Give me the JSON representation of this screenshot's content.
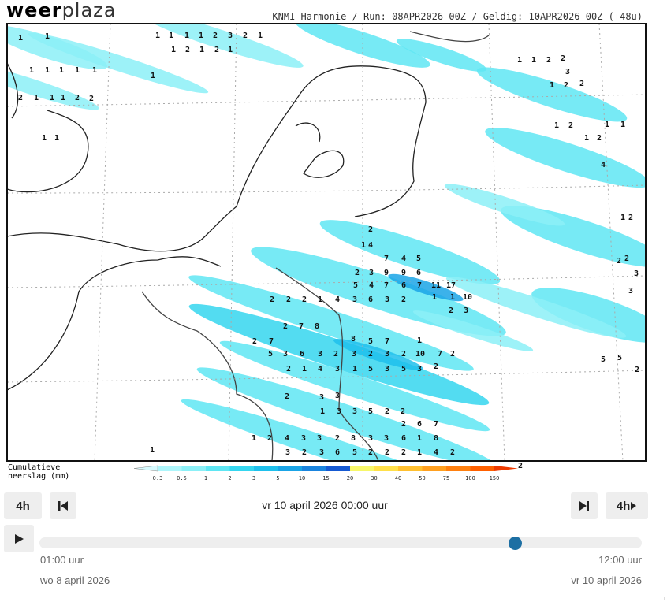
{
  "header": {
    "logo_bold": "weer",
    "logo_light": "plaza",
    "model_info": "KNMI Harmonie / Run: 08APR2026 00Z / Geldig: 10APR2026 00Z (+48u)"
  },
  "legend": {
    "title_lines": [
      "Cumulatieve",
      "neerslag (mm)"
    ],
    "ticks": [
      0.3,
      0.5,
      1,
      2,
      3,
      5,
      10,
      15,
      20,
      30,
      40,
      50,
      75,
      100,
      150
    ],
    "colors": [
      "#d8fbff",
      "#aef6fb",
      "#8cf0f7",
      "#5fe6f3",
      "#35d6ef",
      "#1fc0ec",
      "#1aa4e6",
      "#1a84de",
      "#1559d2",
      "#f7f76a",
      "#ffe04a",
      "#ffc030",
      "#ffa020",
      "#ff8010",
      "#ff6000",
      "#ee3a00"
    ]
  },
  "map_values": [
    1,
    1,
    1,
    1,
    1,
    1,
    2,
    3,
    2,
    1,
    1,
    2,
    1,
    2,
    1,
    1,
    1,
    1,
    1,
    1,
    1,
    2,
    1,
    1,
    1,
    2,
    2,
    1,
    1,
    1,
    1,
    2,
    2,
    3,
    1,
    2,
    2,
    1,
    2,
    1,
    2,
    1,
    1,
    4,
    1,
    2,
    2,
    2,
    3,
    3,
    5,
    5,
    2,
    2,
    1,
    4,
    7,
    4,
    5,
    2,
    3,
    9,
    9,
    6,
    5,
    4,
    7,
    6,
    7,
    11,
    17,
    1,
    10,
    2,
    2,
    2,
    1,
    4,
    3,
    6,
    3,
    2,
    1,
    2,
    3,
    2,
    7,
    5,
    3,
    6,
    3,
    2,
    3,
    2,
    3,
    2,
    10,
    7,
    2,
    2,
    7,
    8,
    8,
    5,
    7,
    1,
    2,
    3,
    3,
    2,
    1,
    4,
    3,
    1,
    5,
    3,
    5,
    3,
    2,
    1,
    3,
    3,
    5,
    2,
    2,
    1,
    2,
    4,
    3,
    3,
    2,
    8,
    3,
    3,
    6,
    1,
    8,
    3,
    2,
    3,
    6,
    5,
    2,
    2,
    2,
    1,
    4,
    2,
    1,
    2,
    6,
    7,
    2
  ],
  "controls": {
    "step_back": "4h",
    "current_time": "vr 10 april 2026 00:00 uur",
    "step_forward": "4h",
    "start_time": "01:00 uur",
    "start_date": "wo 8 april 2026",
    "end_time": "12:00 uur",
    "end_date": "vr 10 april 2026"
  }
}
